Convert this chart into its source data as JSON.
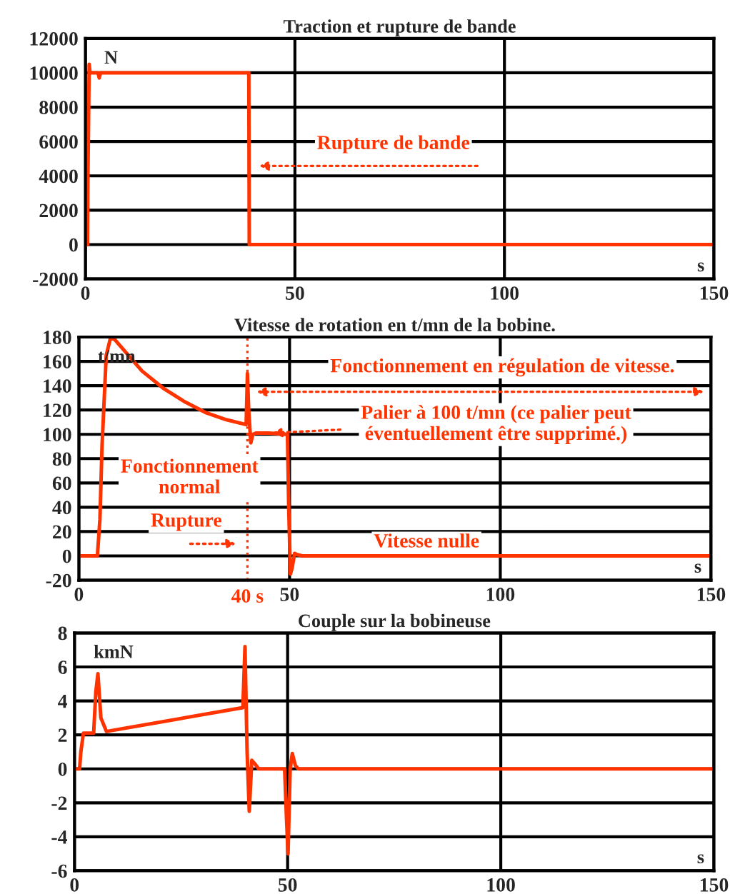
{
  "chart_data": [
    {
      "type": "line",
      "title": "Traction et rupture de bande",
      "ylabel": "N",
      "xlabel": "s",
      "series": [
        {
          "color": "#ff3300",
          "x": [
            0,
            0.5,
            0.6,
            0.9,
            1.1,
            1.3,
            3,
            3.3,
            3.6,
            39,
            39.1,
            150
          ],
          "values": [
            0,
            0,
            4000,
            10500,
            10000,
            10000,
            10000,
            9700,
            10000,
            10000,
            0,
            0
          ]
        }
      ],
      "xlim": [
        0,
        150
      ],
      "xticks": [
        0,
        50,
        100,
        150
      ],
      "ylim": [
        -2000,
        12000
      ],
      "yticks": [
        -2000,
        0,
        2000,
        4000,
        6000,
        8000,
        10000,
        12000
      ],
      "grid": true,
      "annotations": [
        "Rupture de bande"
      ]
    },
    {
      "type": "line",
      "title": "Vitesse de rotation en t/mn de la bobine.",
      "ylabel": "t/mn",
      "xlabel": "s",
      "series": [
        {
          "color": "#ff3300",
          "x": [
            0,
            4.4,
            5,
            5.5,
            6.5,
            7.5,
            8.5,
            10,
            15,
            20,
            25,
            30,
            35,
            39.7,
            40,
            40.3,
            40.8,
            41.3,
            42,
            45,
            49.5,
            49.8,
            50.2,
            50.6,
            51.2,
            51.8,
            53,
            150
          ],
          "values": [
            0,
            0,
            30,
            90,
            165,
            179,
            178,
            172,
            152,
            138,
            127,
            118,
            112,
            108,
            150,
            120,
            93,
            100,
            101,
            101,
            100,
            40,
            -15,
            -10,
            2,
            1,
            0,
            0
          ]
        }
      ],
      "xlim": [
        0,
        150
      ],
      "xticks": [
        0,
        50,
        100,
        150
      ],
      "ylim": [
        -20,
        180
      ],
      "yticks": [
        -20,
        0,
        20,
        40,
        60,
        80,
        100,
        120,
        140,
        160,
        180
      ],
      "grid": true,
      "ref_lines": [
        {
          "axis": "x",
          "value": 40,
          "label": "40 s",
          "color": "#ff3300",
          "line_style": "dotted"
        }
      ],
      "annotations": [
        "Fonctionnement en régulation de vitesse.",
        "Palier à 100 t/mn (ce palier peut\néventuellement être supprimé.)",
        "Fonctionnement\nnormal",
        "Rupture",
        "Vitesse nulle"
      ]
    },
    {
      "type": "line",
      "title": "Couple sur la bobineuse",
      "ylabel": "kmN",
      "xlabel": "s",
      "series": [
        {
          "color": "#ff3300",
          "x": [
            0,
            1.2,
            1.5,
            2.1,
            2.4,
            4.5,
            5,
            5.5,
            6.2,
            7.5,
            39.5,
            40,
            40.5,
            41,
            41.6,
            42.3,
            43.2,
            49.3,
            49.7,
            50.1,
            50.6,
            51.1,
            51.8,
            52.5,
            150
          ],
          "values": [
            0,
            0,
            1,
            2.1,
            2.1,
            2.1,
            4.5,
            5.6,
            3,
            2.2,
            3.6,
            7.2,
            1,
            -2.5,
            0.5,
            0.3,
            0,
            0,
            -2.7,
            -5,
            0,
            0.9,
            0.2,
            0,
            0
          ]
        }
      ],
      "xlim": [
        0,
        150
      ],
      "xticks": [
        0,
        50,
        100,
        150
      ],
      "ylim": [
        -6,
        8
      ],
      "yticks": [
        -6,
        -4,
        -2,
        0,
        2,
        4,
        6,
        8
      ],
      "grid": true
    }
  ]
}
